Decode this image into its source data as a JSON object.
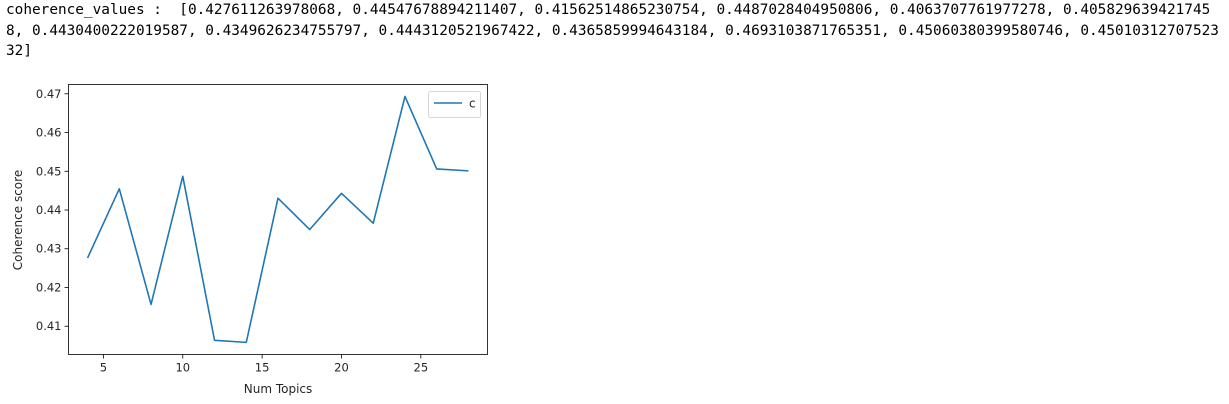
{
  "output": {
    "text": "coherence_values :  [0.427611263978068, 0.44547678894211407, 0.41562514865230754, 0.4487028404950806, 0.4063707761977278, 0.4058296394217458, 0.4430400222019587, 0.4349626234755797, 0.4443120521967422, 0.4365859994643184, 0.4693103871765351, 0.45060380399580746, 0.4501031270752332]"
  },
  "chart_data": {
    "type": "line",
    "x": [
      4,
      6,
      8,
      10,
      12,
      14,
      16,
      18,
      20,
      22,
      24,
      26,
      28
    ],
    "series": [
      {
        "name": "c",
        "color": "#1f77b4",
        "values": [
          0.427611263978068,
          0.44547678894211407,
          0.41562514865230754,
          0.4487028404950806,
          0.4063707761977278,
          0.4058296394217458,
          0.4430400222019587,
          0.4349626234755797,
          0.4443120521967422,
          0.4365859994643184,
          0.4693103871765351,
          0.45060380399580746,
          0.4501031270752332
        ]
      }
    ],
    "xlabel": "Num Topics",
    "ylabel": "Coherence score",
    "xticks": [
      5,
      10,
      15,
      20,
      25
    ],
    "yticks": [
      0.41,
      0.42,
      0.43,
      0.44,
      0.45,
      0.46,
      0.47
    ],
    "xlim": [
      2.8,
      29.2
    ],
    "ylim": [
      0.4027,
      0.4724
    ],
    "grid": false,
    "legend_position": "top-right"
  }
}
